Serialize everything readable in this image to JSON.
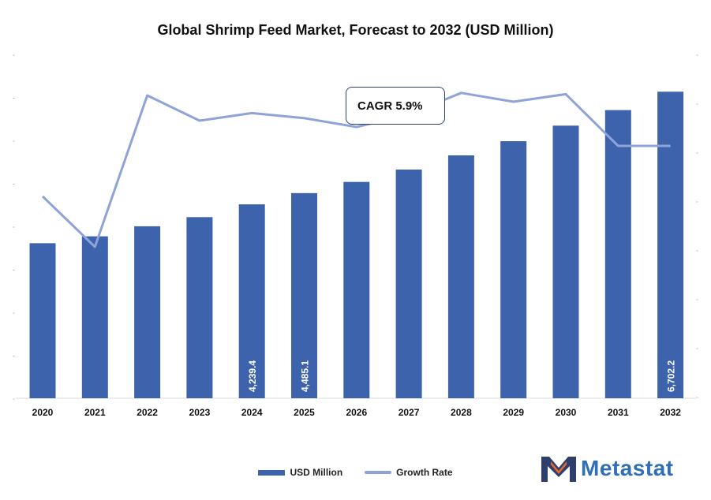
{
  "chart_data": {
    "type": "bar",
    "title": "Global Shrimp Feed Market, Forecast to 2032 (USD Million)",
    "categories": [
      "2020",
      "2021",
      "2022",
      "2023",
      "2024",
      "2025",
      "2026",
      "2027",
      "2028",
      "2029",
      "2030",
      "2031",
      "2032"
    ],
    "series": [
      {
        "name": "USD Million",
        "type": "bar",
        "values": [
          3390,
          3540,
          3760,
          3960,
          4239.4,
          4485.1,
          4730,
          5000,
          5310,
          5620,
          5960,
          6300,
          6702.2
        ],
        "labels": [
          "",
          "",
          "",
          "",
          "4,239.4",
          "4,485.1",
          "",
          "",
          "",
          "",
          "",
          "",
          "6,702.2"
        ]
      },
      {
        "name": "Growth Rate",
        "type": "line",
        "values": [
          4.6,
          4.2,
          5.4,
          5.2,
          5.26,
          5.22,
          5.15,
          5.25,
          5.42,
          5.35,
          5.41,
          5.0,
          5.0
        ]
      }
    ],
    "ylim": [
      0,
      7500
    ],
    "y2lim": [
      3.0,
      6.0
    ],
    "annotation": "CAGR 5.9%",
    "legend_position": "bottom",
    "colors": {
      "bar": "#3d63ad",
      "line": "#8fa3d9",
      "annotation_border": "#2f3f6b"
    }
  },
  "brand": {
    "name": "Metastat",
    "color": "#2f6fb8",
    "icon": "metastat-m-logo-icon"
  }
}
